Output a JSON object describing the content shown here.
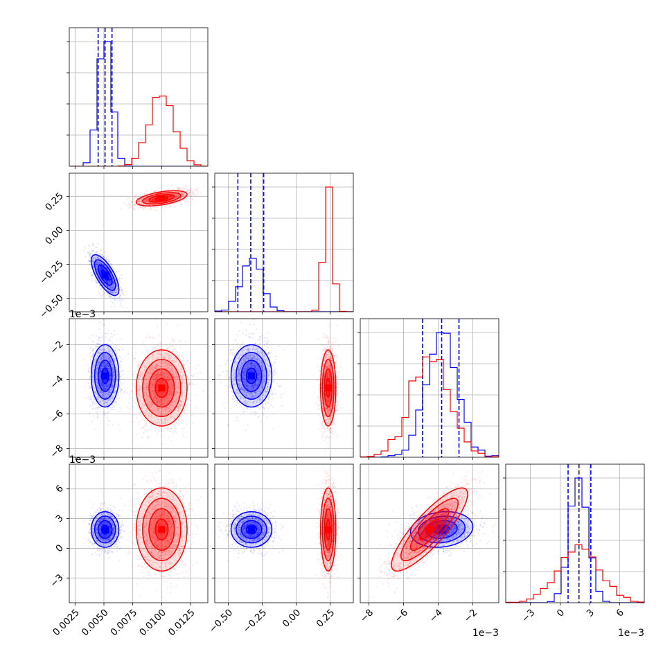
{
  "chart_data": {
    "type": "corner",
    "series": [
      {
        "name": "",
        "color": "#0000ff",
        "mean": [
          0.0051,
          -0.33,
          -0.0038,
          0.0019
        ],
        "sd": [
          0.0006,
          0.075,
          0.0009,
          0.0009
        ],
        "quantiles": [
          [
            0.0045,
            0.0051,
            0.0057
          ],
          [
            -0.43,
            -0.335,
            -0.24
          ],
          [
            -0.0049,
            -0.0038,
            -0.0028
          ],
          [
            0.0008,
            0.0019,
            0.0031
          ]
        ]
      },
      {
        "name": "",
        "color": "#ff0000",
        "mean": [
          0.01,
          0.235,
          -0.0045,
          0.0019
        ],
        "sd": [
          0.0011,
          0.028,
          0.0011,
          0.0021
        ]
      }
    ],
    "params": [
      {
        "range": [
          0.002,
          0.014
        ],
        "ticks": [
          0.0025,
          0.005,
          0.0075,
          0.01,
          0.0125
        ],
        "tick_labels": [
          "0.0025",
          "0.0050",
          "0.0075",
          "0.0100",
          "0.0125"
        ],
        "offset": ""
      },
      {
        "range": [
          -0.6,
          0.42
        ],
        "ticks": [
          -0.5,
          -0.25,
          0.0,
          0.25
        ],
        "tick_labels": [
          "−0.50",
          "−0.25",
          "0.00",
          "0.25"
        ],
        "offset": ""
      },
      {
        "range": [
          -0.0085,
          -0.0005
        ],
        "ticks": [
          -0.008,
          -0.006,
          -0.004,
          -0.002
        ],
        "tick_labels": [
          "−8",
          "−6",
          "−4",
          "−2"
        ],
        "offset": "1e−3"
      },
      {
        "range": [
          -0.0055,
          0.0085
        ],
        "ticks": [
          -0.003,
          0.0,
          0.003,
          0.006
        ],
        "tick_labels": [
          "−3",
          "0",
          "3",
          "6"
        ],
        "offset": "1e−3"
      }
    ],
    "grid": true
  }
}
